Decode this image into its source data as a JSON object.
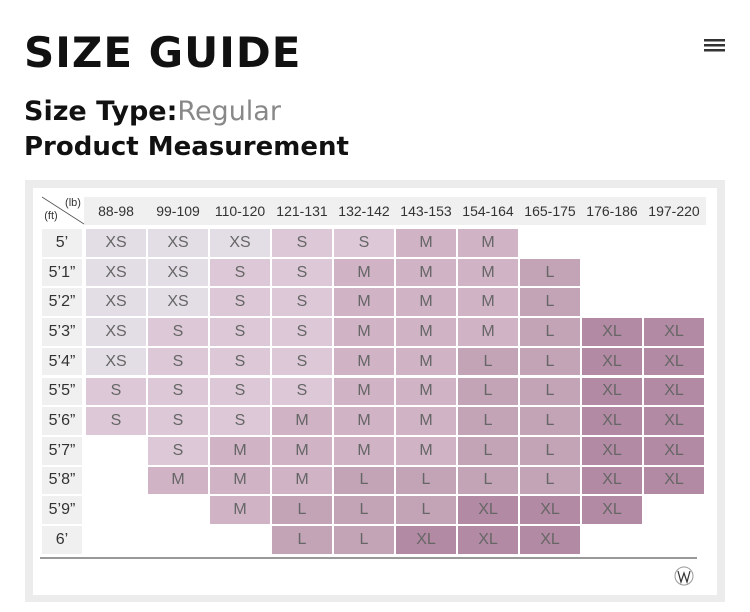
{
  "header": {
    "title": "SIZE GUIDE",
    "size_type_label": "Size Type:",
    "size_type_value": "Regular",
    "subtitle": "Product Measurement"
  },
  "table": {
    "corner_top": "(lb)",
    "corner_bottom": "(ft)",
    "columns": [
      "88-98",
      "99-109",
      "110-120",
      "121-131",
      "132-142",
      "143-153",
      "154-164",
      "165-175",
      "176-186",
      "197-220"
    ],
    "size_colors": {
      "XS": "#e3dee6",
      "S": "#dcc8d6",
      "M": "#d0b4c6",
      "L": "#c3a4b7",
      "XL": "#b28aa3"
    },
    "rows": [
      {
        "height": "5’",
        "cells": [
          "XS",
          "XS",
          "XS",
          "S",
          "S",
          "M",
          "M",
          null,
          null,
          null
        ]
      },
      {
        "height": "5’1”",
        "cells": [
          "XS",
          "XS",
          "S",
          "S",
          "M",
          "M",
          "M",
          "L",
          null,
          null
        ]
      },
      {
        "height": "5’2”",
        "cells": [
          "XS",
          "XS",
          "S",
          "S",
          "M",
          "M",
          "M",
          "L",
          null,
          null
        ]
      },
      {
        "height": "5’3”",
        "cells": [
          "XS",
          "S",
          "S",
          "S",
          "M",
          "M",
          "M",
          "L",
          "XL",
          "XL"
        ]
      },
      {
        "height": "5’4”",
        "cells": [
          "XS",
          "S",
          "S",
          "S",
          "M",
          "M",
          "L",
          "L",
          "XL",
          "XL"
        ]
      },
      {
        "height": "5’5”",
        "cells": [
          "S",
          "S",
          "S",
          "S",
          "M",
          "M",
          "L",
          "L",
          "XL",
          "XL"
        ]
      },
      {
        "height": "5’6”",
        "cells": [
          "S",
          "S",
          "S",
          "M",
          "M",
          "M",
          "L",
          "L",
          "XL",
          "XL"
        ]
      },
      {
        "height": "5’7”",
        "cells": [
          null,
          "S",
          "M",
          "M",
          "M",
          "M",
          "L",
          "L",
          "XL",
          "XL"
        ]
      },
      {
        "height": "5’8”",
        "cells": [
          null,
          "M",
          "M",
          "M",
          "L",
          "L",
          "L",
          "L",
          "XL",
          "XL"
        ]
      },
      {
        "height": "5’9”",
        "cells": [
          null,
          null,
          "M",
          "L",
          "L",
          "L",
          "XL",
          "XL",
          "XL",
          null
        ]
      },
      {
        "height": "6’",
        "cells": [
          null,
          null,
          null,
          "L",
          "L",
          "XL",
          "XL",
          "XL",
          null,
          null
        ]
      }
    ]
  }
}
